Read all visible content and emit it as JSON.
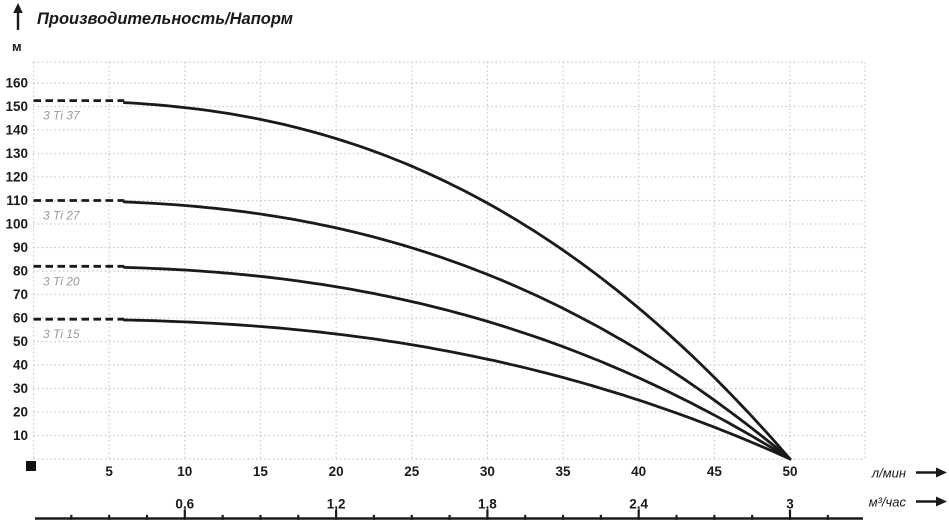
{
  "page": {
    "title": "Производительность/Напорм",
    "y_axis_unit": "м",
    "x_axis_unit_primary": "л/мин",
    "x_axis_unit_secondary": "м³/час"
  },
  "chart_data": {
    "type": "line",
    "title": "Производительность/Напорм",
    "ylabel": "м",
    "xlabel_primary": "л/мин",
    "xlabel_secondary": "м³/час",
    "grid": true,
    "legend_position": "inline-left-of-curves",
    "xlim_lmin": [
      0,
      55
    ],
    "ylim_m": [
      0,
      169
    ],
    "y_ticks": [
      10,
      20,
      30,
      40,
      50,
      60,
      70,
      80,
      90,
      100,
      110,
      120,
      130,
      140,
      150,
      160
    ],
    "x_ticks_lmin": [
      5,
      10,
      15,
      20,
      25,
      30,
      35,
      40,
      45,
      50
    ],
    "x_ticks_m3h": [
      {
        "label": "0,6",
        "at_lmin": 10
      },
      {
        "label": "1,2",
        "at_lmin": 20
      },
      {
        "label": "1,8",
        "at_lmin": 30
      },
      {
        "label": "2,4",
        "at_lmin": 40
      },
      {
        "label": "3",
        "at_lmin": 50
      }
    ],
    "curve_model": {
      "type": "power-droop",
      "exponent": 2.45,
      "zero_head_at_lmin": 50,
      "dashed_until_lmin": 6
    },
    "x_lmin": [
      0,
      5,
      10,
      15,
      20,
      25,
      30,
      35,
      40,
      45,
      50
    ],
    "series": [
      {
        "name": "3 Ti 37",
        "shutoff_head_m": 152.5,
        "head_m_at_x": [
          152.5,
          152,
          149.5,
          144.5,
          136.5,
          124.5,
          109,
          89,
          64,
          34.5,
          0
        ]
      },
      {
        "name": "3 Ti 27",
        "shutoff_head_m": 110,
        "head_m_at_x": [
          110,
          109.5,
          108,
          104,
          98.5,
          90,
          78.5,
          64,
          46.5,
          25,
          0
        ]
      },
      {
        "name": "3 Ti 20",
        "shutoff_head_m": 82,
        "head_m_at_x": [
          82,
          81.5,
          80.5,
          77.5,
          73.5,
          67,
          58.5,
          48,
          34.5,
          18.5,
          0
        ]
      },
      {
        "name": "3 Ti 15",
        "shutoff_head_m": 59.5,
        "head_m_at_x": [
          59.5,
          59.5,
          58.5,
          56.5,
          53,
          48.5,
          42.5,
          34.5,
          25,
          13.5,
          0
        ]
      }
    ]
  },
  "colors": {
    "curve": "#1a1a1a",
    "grid": "#c6c6c6",
    "axis_line": "#1a1a1a",
    "tick_label": "#1a1a1a",
    "series_label": "#9a9a9a",
    "background": "#ffffff"
  }
}
